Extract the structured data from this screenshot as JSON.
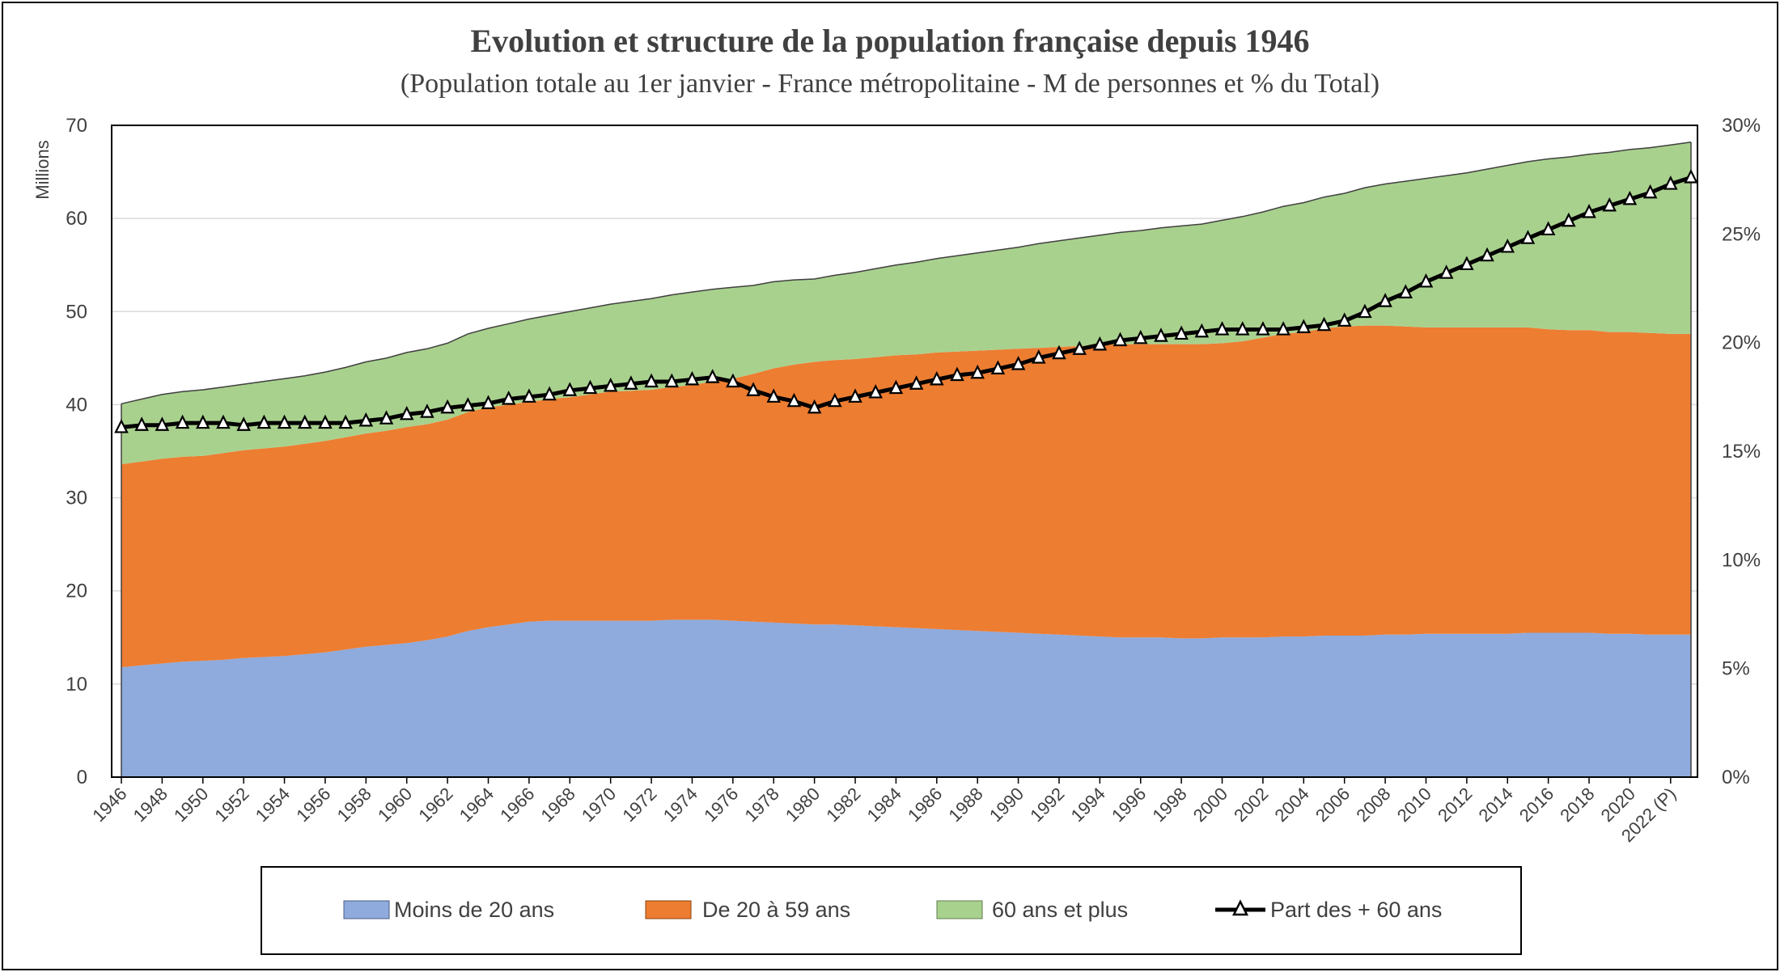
{
  "chart_data": {
    "type": "area",
    "title": "Evolution et structure de la population française depuis 1946",
    "subtitle": "(Population totale au 1er janvier - France métropolitaine - M de personnes et % du Total)",
    "ylabel": "Millions",
    "ylim": [
      0,
      70
    ],
    "y_ticks": [
      "0",
      "10",
      "20",
      "30",
      "40",
      "50",
      "60",
      "70"
    ],
    "y2lim": [
      0,
      30
    ],
    "y2_ticks": [
      "0%",
      "5%",
      "10%",
      "15%",
      "20%",
      "25%",
      "30%"
    ],
    "grid": true,
    "legend_position": "bottom",
    "x_ticks": [
      "1946",
      "1948",
      "1950",
      "1952",
      "1954",
      "1956",
      "1958",
      "1960",
      "1962",
      "1964",
      "1966",
      "1968",
      "1970",
      "1972",
      "1974",
      "1976",
      "1978",
      "1980",
      "1982",
      "1984",
      "1986",
      "1988",
      "1990",
      "1992",
      "1994",
      "1996",
      "1998",
      "2000",
      "2002",
      "2004",
      "2006",
      "2008",
      "2010",
      "2012",
      "2014",
      "2016",
      "2018",
      "2020",
      "2022 (P)"
    ],
    "x": [
      1946,
      1947,
      1948,
      1949,
      1950,
      1951,
      1952,
      1953,
      1954,
      1955,
      1956,
      1957,
      1958,
      1959,
      1960,
      1961,
      1962,
      1963,
      1964,
      1965,
      1966,
      1967,
      1968,
      1969,
      1970,
      1971,
      1972,
      1973,
      1974,
      1975,
      1976,
      1977,
      1978,
      1979,
      1980,
      1981,
      1982,
      1983,
      1984,
      1985,
      1986,
      1987,
      1988,
      1989,
      1990,
      1991,
      1992,
      1993,
      1994,
      1995,
      1996,
      1997,
      1998,
      1999,
      2000,
      2001,
      2002,
      2003,
      2004,
      2005,
      2006,
      2007,
      2008,
      2009,
      2010,
      2011,
      2012,
      2013,
      2014,
      2015,
      2016,
      2017,
      2018,
      2019,
      2020,
      2021,
      2022,
      2023
    ],
    "series": [
      {
        "name": "Moins de 20 ans",
        "color": "#8FAADC",
        "axis": "left",
        "values": [
          11.8,
          12.0,
          12.2,
          12.4,
          12.5,
          12.6,
          12.8,
          12.9,
          13.0,
          13.2,
          13.4,
          13.7,
          14.0,
          14.2,
          14.4,
          14.7,
          15.1,
          15.7,
          16.1,
          16.4,
          16.7,
          16.8,
          16.8,
          16.8,
          16.8,
          16.8,
          16.8,
          16.9,
          16.9,
          16.9,
          16.8,
          16.7,
          16.6,
          16.5,
          16.4,
          16.4,
          16.3,
          16.2,
          16.1,
          16.0,
          15.9,
          15.8,
          15.7,
          15.6,
          15.5,
          15.4,
          15.3,
          15.2,
          15.1,
          15.0,
          15.0,
          15.0,
          14.9,
          14.9,
          15.0,
          15.0,
          15.0,
          15.1,
          15.1,
          15.2,
          15.2,
          15.2,
          15.3,
          15.3,
          15.4,
          15.4,
          15.4,
          15.4,
          15.4,
          15.5,
          15.5,
          15.5,
          15.5,
          15.4,
          15.4,
          15.3,
          15.3,
          15.3
        ]
      },
      {
        "name": "De 20 à 59 ans",
        "color": "#ED7D31",
        "axis": "left",
        "values": [
          21.8,
          21.9,
          22.0,
          22.0,
          22.0,
          22.2,
          22.3,
          22.4,
          22.5,
          22.6,
          22.7,
          22.8,
          22.9,
          23.0,
          23.2,
          23.2,
          23.3,
          23.5,
          23.6,
          23.6,
          23.6,
          23.8,
          24.0,
          24.3,
          24.6,
          24.7,
          24.8,
          25.0,
          25.2,
          25.6,
          26.0,
          26.6,
          27.3,
          27.8,
          28.2,
          28.4,
          28.6,
          28.9,
          29.2,
          29.4,
          29.7,
          29.9,
          30.1,
          30.3,
          30.5,
          30.7,
          30.9,
          31.1,
          31.3,
          31.5,
          31.5,
          31.5,
          31.6,
          31.6,
          31.6,
          31.8,
          32.2,
          32.5,
          32.7,
          33.0,
          33.2,
          33.3,
          33.2,
          33.1,
          32.9,
          32.9,
          32.9,
          32.9,
          32.9,
          32.8,
          32.6,
          32.5,
          32.5,
          32.4,
          32.4,
          32.4,
          32.3,
          32.3
        ]
      },
      {
        "name": "60 ans et plus",
        "color": "#A9D18E",
        "axis": "left",
        "values": [
          6.5,
          6.7,
          6.9,
          7.0,
          7.1,
          7.1,
          7.1,
          7.2,
          7.3,
          7.3,
          7.4,
          7.5,
          7.7,
          7.8,
          8.0,
          8.1,
          8.2,
          8.4,
          8.5,
          8.7,
          8.9,
          9.0,
          9.2,
          9.3,
          9.4,
          9.6,
          9.8,
          9.9,
          10.0,
          9.9,
          9.8,
          9.5,
          9.3,
          9.1,
          8.9,
          9.1,
          9.3,
          9.5,
          9.7,
          9.9,
          10.1,
          10.3,
          10.5,
          10.7,
          10.9,
          11.2,
          11.4,
          11.6,
          11.8,
          12.0,
          12.2,
          12.5,
          12.7,
          12.9,
          13.2,
          13.4,
          13.5,
          13.7,
          13.9,
          14.1,
          14.3,
          14.8,
          15.2,
          15.6,
          16.0,
          16.3,
          16.6,
          17.0,
          17.4,
          17.8,
          18.3,
          18.6,
          18.9,
          19.3,
          19.6,
          19.9,
          20.3,
          20.6
        ]
      },
      {
        "name": "Part des + 60 ans",
        "color": "#000000",
        "axis": "right",
        "unit": "%",
        "values": [
          16.1,
          16.2,
          16.2,
          16.3,
          16.3,
          16.3,
          16.2,
          16.3,
          16.3,
          16.3,
          16.3,
          16.3,
          16.4,
          16.5,
          16.7,
          16.8,
          17.0,
          17.1,
          17.2,
          17.4,
          17.5,
          17.6,
          17.8,
          17.9,
          18.0,
          18.1,
          18.2,
          18.2,
          18.3,
          18.4,
          18.2,
          17.8,
          17.5,
          17.3,
          17.0,
          17.3,
          17.5,
          17.7,
          17.9,
          18.1,
          18.3,
          18.5,
          18.6,
          18.8,
          19.0,
          19.3,
          19.5,
          19.7,
          19.9,
          20.1,
          20.2,
          20.3,
          20.4,
          20.5,
          20.6,
          20.6,
          20.6,
          20.6,
          20.7,
          20.8,
          21.0,
          21.4,
          21.9,
          22.3,
          22.8,
          23.2,
          23.6,
          24.0,
          24.4,
          24.8,
          25.2,
          25.6,
          26.0,
          26.3,
          26.6,
          26.9,
          27.3,
          27.6
        ]
      }
    ]
  }
}
